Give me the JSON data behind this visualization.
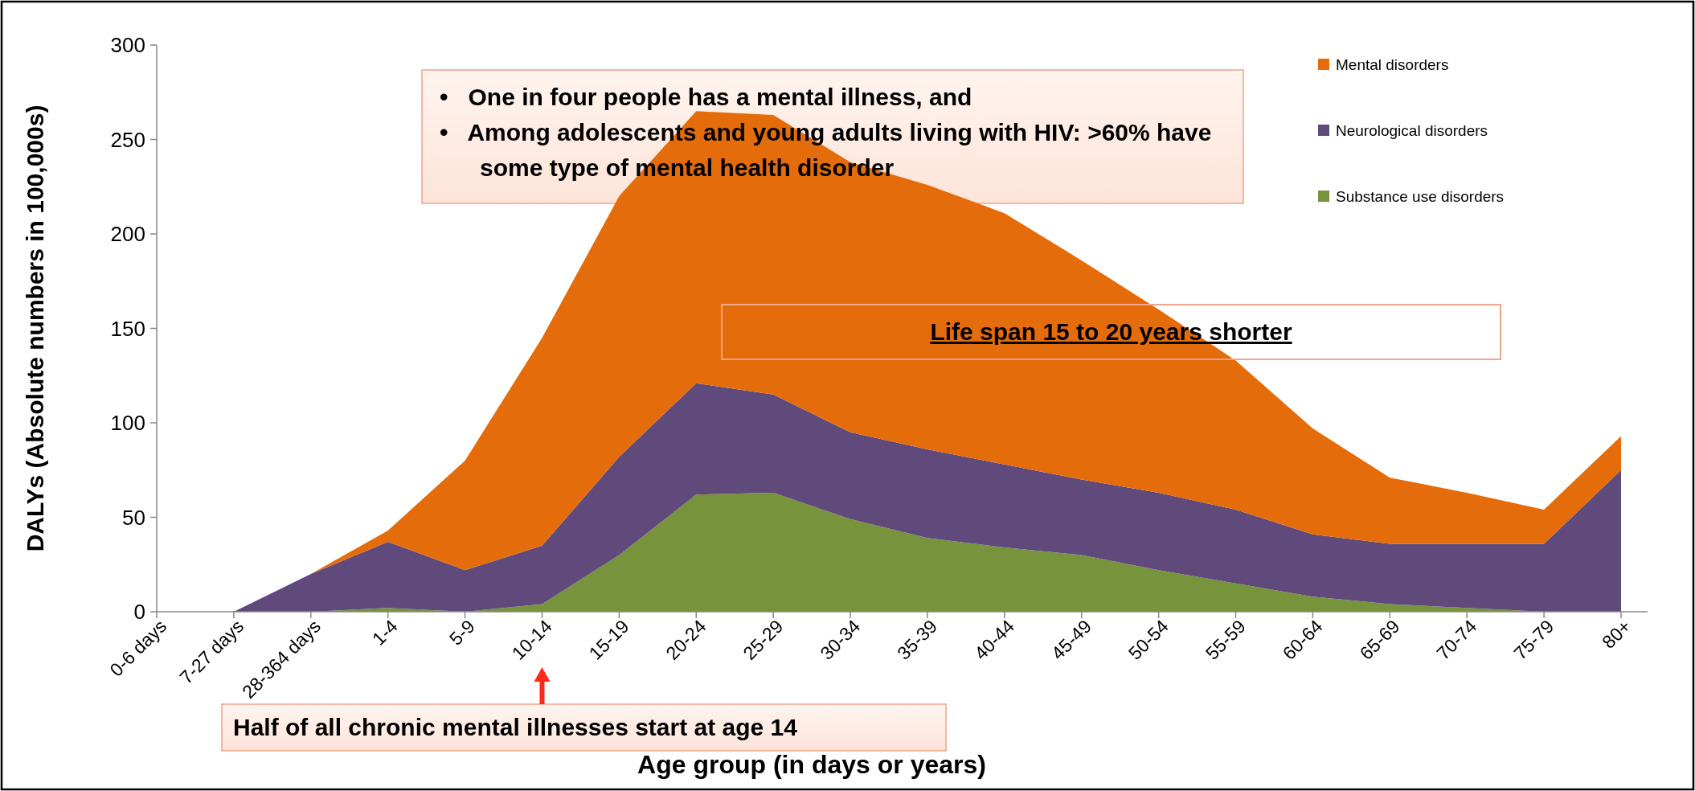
{
  "chart_data": {
    "type": "area",
    "stacked": true,
    "xlabel": "Age group (in days or years)",
    "ylabel": "DALYs (Absolute  numbers in 100,000s)",
    "categories": [
      "0-6 days",
      "7-27 days",
      "28-364 days",
      "1-4",
      "5-9",
      "10-14",
      "15-19",
      "20-24",
      "25-29",
      "30-34",
      "35-39",
      "40-44",
      "45-49",
      "50-54",
      "55-59",
      "60-64",
      "65-69",
      "70-74",
      "75-79",
      "80+"
    ],
    "series": [
      {
        "name": "Substance use disorders",
        "color": "#77933c",
        "values": [
          0,
          0,
          0,
          2,
          0,
          4,
          30,
          62,
          63,
          49,
          39,
          34,
          30,
          22,
          15,
          8,
          4,
          2,
          0,
          0
        ]
      },
      {
        "name": "Neurological disorders",
        "color": "#604a7b",
        "values": [
          0,
          0,
          20,
          35,
          22,
          31,
          52,
          59,
          52,
          46,
          47,
          44,
          40,
          41,
          39,
          33,
          32,
          34,
          36,
          75
        ]
      },
      {
        "name": "Mental disorders",
        "color": "#e46c0a",
        "values": [
          0,
          0,
          0,
          6,
          58,
          110,
          138,
          144,
          148,
          143,
          140,
          133,
          116,
          97,
          79,
          56,
          35,
          27,
          18,
          18
        ]
      }
    ],
    "ylim": [
      0,
      300
    ],
    "yticks": [
      0,
      50,
      100,
      150,
      200,
      250,
      300
    ],
    "grid": false,
    "legend": "top right",
    "annotations": [
      "•   One in four people has a mental illness, and",
      "•   Among adolescents and young adults living with HIV: >60% have some type of mental health disorder",
      "Life span 15 to 20 years shorter",
      "Half of all chronic mental illnesses start at age 14"
    ]
  }
}
